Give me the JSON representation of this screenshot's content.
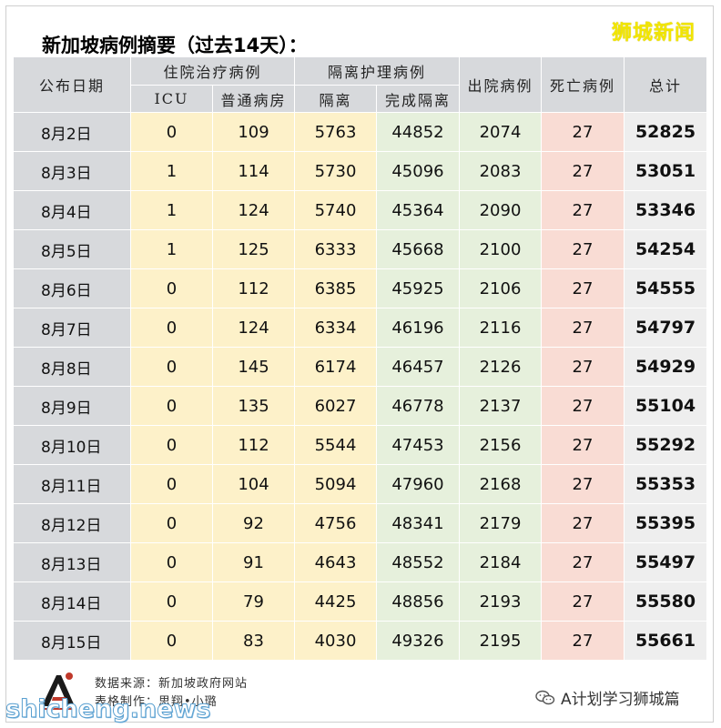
{
  "title": "新加坡病例摘要（过去14天）：",
  "watermark_top": "狮城新闻",
  "headers": {
    "date": "公布日期",
    "hospital": "住院治疗病例",
    "icu": "ICU",
    "ward": "普通病房",
    "isolation_group": "隔离护理病例",
    "isolation": "隔离",
    "completed": "完成隔离",
    "discharged": "出院病例",
    "deaths": "死亡病例",
    "total": "总计"
  },
  "rows": [
    {
      "date": "8月2日",
      "icu": "0",
      "ward": "109",
      "isolation": "5763",
      "completed": "44852",
      "discharged": "2074",
      "deaths": "27",
      "total": "52825"
    },
    {
      "date": "8月3日",
      "icu": "1",
      "ward": "114",
      "isolation": "5730",
      "completed": "45096",
      "discharged": "2083",
      "deaths": "27",
      "total": "53051"
    },
    {
      "date": "8月4日",
      "icu": "1",
      "ward": "124",
      "isolation": "5740",
      "completed": "45364",
      "discharged": "2090",
      "deaths": "27",
      "total": "53346"
    },
    {
      "date": "8月5日",
      "icu": "1",
      "ward": "125",
      "isolation": "6333",
      "completed": "45668",
      "discharged": "2100",
      "deaths": "27",
      "total": "54254"
    },
    {
      "date": "8月6日",
      "icu": "0",
      "ward": "112",
      "isolation": "6385",
      "completed": "45925",
      "discharged": "2106",
      "deaths": "27",
      "total": "54555"
    },
    {
      "date": "8月7日",
      "icu": "0",
      "ward": "124",
      "isolation": "6334",
      "completed": "46196",
      "discharged": "2116",
      "deaths": "27",
      "total": "54797"
    },
    {
      "date": "8月8日",
      "icu": "0",
      "ward": "145",
      "isolation": "6174",
      "completed": "46457",
      "discharged": "2126",
      "deaths": "27",
      "total": "54929"
    },
    {
      "date": "8月9日",
      "icu": "0",
      "ward": "135",
      "isolation": "6027",
      "completed": "46778",
      "discharged": "2137",
      "deaths": "27",
      "total": "55104"
    },
    {
      "date": "8月10日",
      "icu": "0",
      "ward": "112",
      "isolation": "5544",
      "completed": "47453",
      "discharged": "2156",
      "deaths": "27",
      "total": "55292"
    },
    {
      "date": "8月11日",
      "icu": "0",
      "ward": "104",
      "isolation": "5094",
      "completed": "47960",
      "discharged": "2168",
      "deaths": "27",
      "total": "55353"
    },
    {
      "date": "8月12日",
      "icu": "0",
      "ward": "92",
      "isolation": "4756",
      "completed": "48341",
      "discharged": "2179",
      "deaths": "27",
      "total": "55395"
    },
    {
      "date": "8月13日",
      "icu": "0",
      "ward": "91",
      "isolation": "4643",
      "completed": "48552",
      "discharged": "2184",
      "deaths": "27",
      "total": "55497"
    },
    {
      "date": "8月14日",
      "icu": "0",
      "ward": "79",
      "isolation": "4425",
      "completed": "48856",
      "discharged": "2193",
      "deaths": "27",
      "total": "55580"
    },
    {
      "date": "8月15日",
      "icu": "0",
      "ward": "83",
      "isolation": "4030",
      "completed": "49326",
      "discharged": "2195",
      "deaths": "27",
      "total": "55661"
    }
  ],
  "footer": {
    "source": "数据来源：新加坡政府网站",
    "credit": "表格制作：思翔•小璐",
    "watermark_left": "shicheng.news",
    "watermark_right": "A计划学习狮城篇",
    "wechat_icon": "wechat-icon"
  },
  "colors": {
    "header_gray": "#d7d9dc",
    "hospital_yellow": "#fdf1c9",
    "isolation_green": "#e6f0dc",
    "death_pink": "#f9dcd4",
    "total_gray": "#eeeeee"
  }
}
